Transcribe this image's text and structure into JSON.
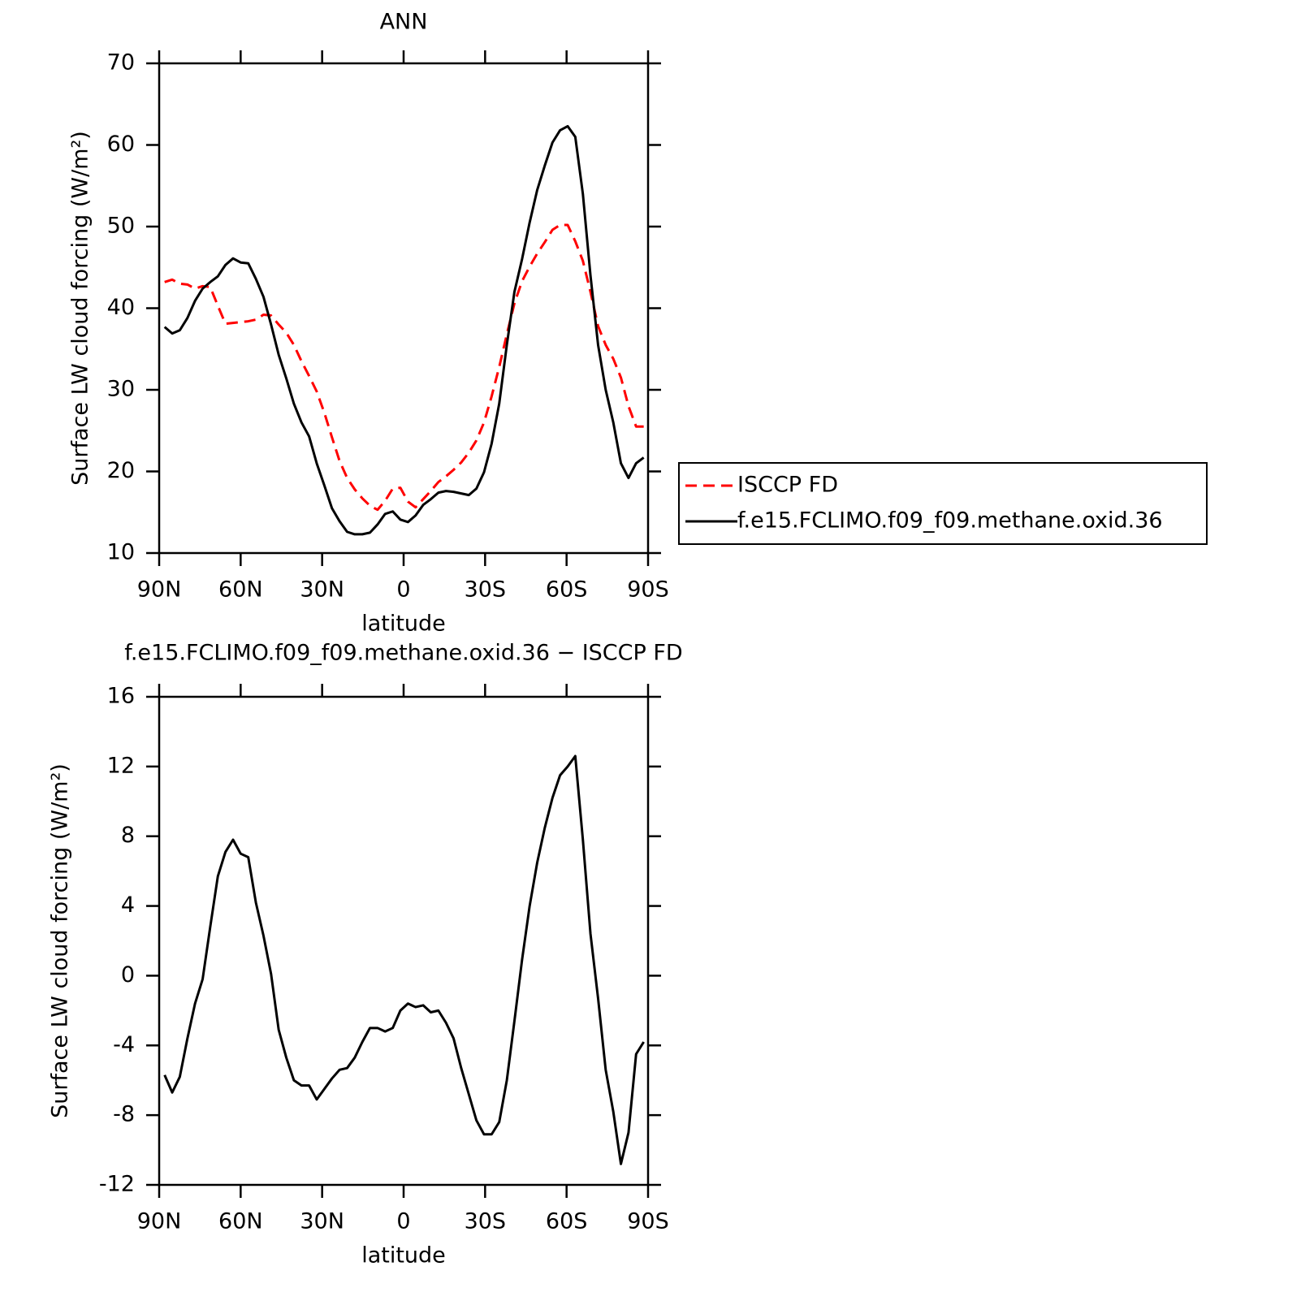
{
  "chart_data": [
    {
      "type": "line",
      "title": "ANN",
      "xlabel": "latitude",
      "ylabel": "Surface LW cloud forcing (W/m²)",
      "x": [
        88,
        85.2,
        82.4,
        79.6,
        76.8,
        74,
        71.2,
        68.4,
        65.6,
        62.8,
        60,
        57.2,
        54.4,
        51.6,
        48.8,
        46,
        43.2,
        40.4,
        37.6,
        34.8,
        32,
        29.2,
        26.4,
        23.6,
        20.8,
        18,
        15.2,
        12.4,
        9.6,
        6.8,
        4,
        1.2,
        -1.6,
        -4.4,
        -7.2,
        -10,
        -12.8,
        -15.6,
        -18.4,
        -21.2,
        -24,
        -26.8,
        -29.6,
        -32.4,
        -35.2,
        -38,
        -40.8,
        -43.6,
        -46.4,
        -49.2,
        -52,
        -54.8,
        -57.6,
        -60.4,
        -63.2,
        -66,
        -68.8,
        -71.6,
        -74.4,
        -77.2,
        -80,
        -82.8,
        -85.6,
        -88.4
      ],
      "series": [
        {
          "name": "ISCCP FD",
          "color": "#ff0000",
          "line_style": "dashed",
          "values": [
            43.2,
            43.5,
            43.0,
            42.9,
            42.4,
            42.7,
            42.6,
            40.3,
            38.1,
            38.2,
            38.3,
            38.4,
            38.6,
            39.2,
            39.1,
            38.0,
            37.0,
            35.5,
            33.5,
            31.7,
            29.8,
            27.2,
            24.2,
            21.3,
            19.2,
            17.8,
            16.7,
            15.8,
            15.3,
            16.4,
            17.9,
            18.0,
            16.3,
            15.6,
            16.6,
            17.6,
            18.7,
            19.4,
            20.2,
            21.1,
            22.3,
            23.8,
            26.0,
            29.2,
            32.8,
            36.8,
            40.6,
            43.3,
            45.1,
            46.7,
            48.1,
            49.6,
            50.2,
            50.2,
            48.2,
            45.8,
            42.0,
            37.8,
            35.5,
            33.8,
            31.5,
            28.0,
            25.5,
            25.5
          ]
        },
        {
          "name": "f.e15.FCLIMO.f09_f09.methane.oxid.36",
          "color": "#000000",
          "line_style": "solid",
          "values": [
            37.7,
            36.9,
            37.3,
            38.8,
            40.9,
            42.4,
            43.2,
            43.9,
            45.3,
            46.1,
            45.6,
            45.5,
            43.6,
            41.4,
            38.0,
            34.3,
            31.4,
            28.3,
            26.0,
            24.3,
            21.0,
            18.3,
            15.5,
            13.9,
            12.6,
            12.3,
            12.3,
            12.5,
            13.5,
            14.8,
            15.1,
            14.1,
            13.8,
            14.6,
            15.9,
            16.6,
            17.4,
            17.6,
            17.5,
            17.3,
            17.1,
            17.9,
            19.9,
            23.4,
            28.3,
            35.5,
            42.0,
            46.0,
            50.5,
            54.5,
            57.5,
            60.3,
            61.8,
            62.3,
            61.0,
            54.0,
            44.0,
            35.5,
            30.0,
            26.0,
            21.0,
            19.2,
            21.0,
            21.7
          ]
        }
      ],
      "xlim": [
        90,
        -90
      ],
      "xticks": [
        {
          "value": 90,
          "label": "90N"
        },
        {
          "value": 60,
          "label": "60N"
        },
        {
          "value": 30,
          "label": "30N"
        },
        0,
        {
          "value": -30,
          "label": "30S"
        },
        {
          "value": -60,
          "label": "60S"
        },
        {
          "value": -90,
          "label": "90S"
        }
      ],
      "ylim": [
        10,
        70
      ],
      "yticks": [
        10,
        20,
        30,
        40,
        50,
        60,
        70
      ],
      "legend": "right"
    },
    {
      "type": "line",
      "title": "f.e15.FCLIMO.f09_f09.methane.oxid.36 − ISCCP FD",
      "xlabel": "latitude",
      "ylabel": "Surface LW cloud forcing (W/m²)",
      "x": [
        88,
        85.2,
        82.4,
        79.6,
        76.8,
        74,
        71.2,
        68.4,
        65.6,
        62.8,
        60,
        57.2,
        54.4,
        51.6,
        48.8,
        46,
        43.2,
        40.4,
        37.6,
        34.8,
        32,
        29.2,
        26.4,
        23.6,
        20.8,
        18,
        15.2,
        12.4,
        9.6,
        6.8,
        4,
        1.2,
        -1.6,
        -4.4,
        -7.2,
        -10,
        -12.8,
        -15.6,
        -18.4,
        -21.2,
        -24,
        -26.8,
        -29.6,
        -32.4,
        -35.2,
        -38,
        -40.8,
        -43.6,
        -46.4,
        -49.2,
        -52,
        -54.8,
        -57.6,
        -60.4,
        -63.2,
        -66,
        -68.8,
        -71.6,
        -74.4,
        -77.2,
        -80,
        -82.8,
        -85.6,
        -88.4
      ],
      "values": [
        -5.7,
        -6.7,
        -5.8,
        -3.6,
        -1.6,
        -0.2,
        2.8,
        5.7,
        7.1,
        7.8,
        7.0,
        6.8,
        4.2,
        2.3,
        0.1,
        -3.1,
        -4.7,
        -6.0,
        -6.3,
        -6.3,
        -7.1,
        -6.5,
        -5.9,
        -5.4,
        -5.3,
        -4.7,
        -3.8,
        -3.0,
        -3.0,
        -3.2,
        -3.0,
        -2.0,
        -1.6,
        -1.8,
        -1.7,
        -2.1,
        -2.0,
        -2.7,
        -3.6,
        -5.3,
        -6.8,
        -8.3,
        -9.1,
        -9.1,
        -8.4,
        -6.0,
        -2.6,
        0.9,
        4.0,
        6.5,
        8.5,
        10.2,
        11.5,
        12.0,
        12.6,
        7.8,
        2.4,
        -1.3,
        -5.4,
        -7.8,
        -10.8,
        -9.0,
        -4.5,
        -3.8
      ],
      "color": "#000000",
      "xlim": [
        90,
        -90
      ],
      "xticks": [
        {
          "value": 90,
          "label": "90N"
        },
        {
          "value": 60,
          "label": "60N"
        },
        {
          "value": 30,
          "label": "30N"
        },
        0,
        {
          "value": -30,
          "label": "30S"
        },
        {
          "value": -60,
          "label": "60S"
        },
        {
          "value": -90,
          "label": "90S"
        }
      ],
      "ylim": [
        -12,
        16
      ],
      "yticks": [
        -12,
        -8,
        -4,
        0,
        4,
        8,
        12,
        16
      ]
    }
  ]
}
